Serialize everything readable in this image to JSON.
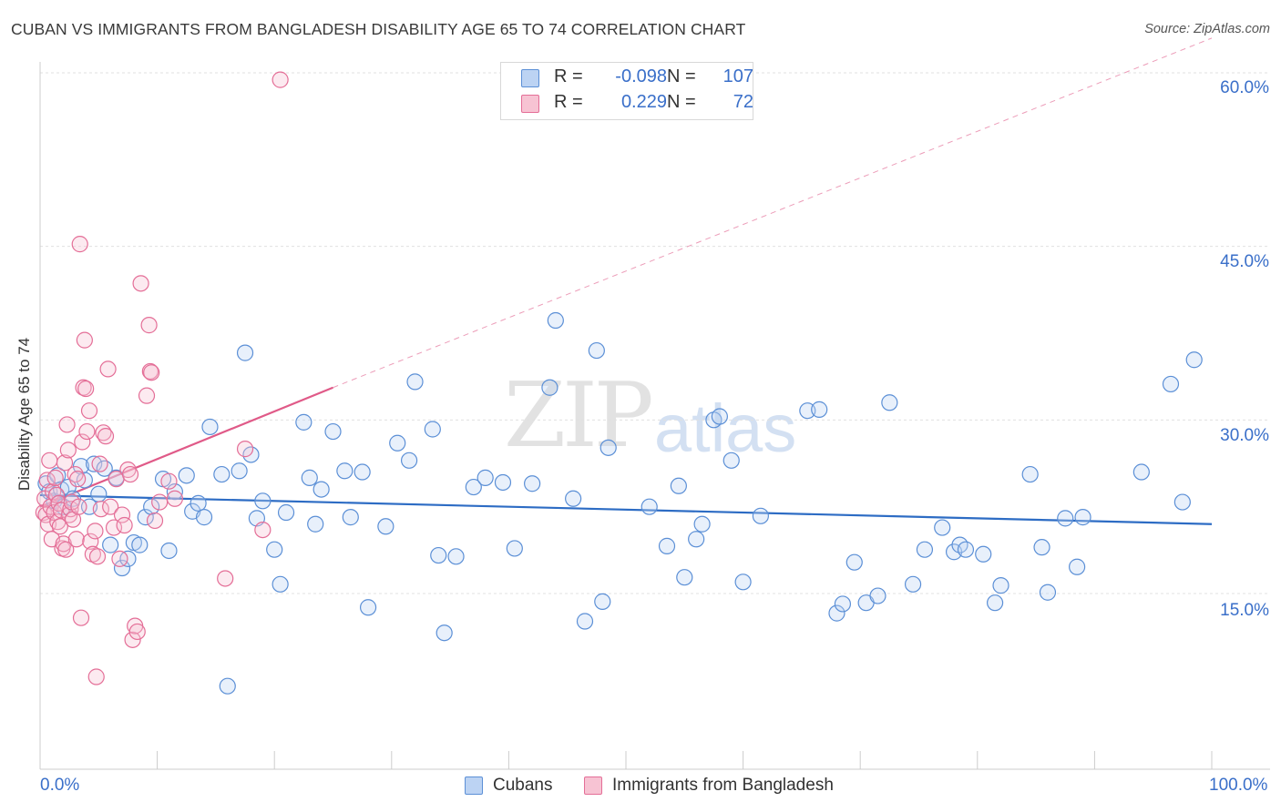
{
  "title": "CUBAN VS IMMIGRANTS FROM BANGLADESH DISABILITY AGE 65 TO 74 CORRELATION CHART",
  "source": "Source: ZipAtlas.com",
  "watermark": {
    "zip": "ZIP",
    "atlas": "atlas"
  },
  "legend_top": {
    "rows": [
      {
        "r_label": "R =",
        "r_value": "-0.098",
        "n_label": "N =",
        "n_value": "107"
      },
      {
        "r_label": "R =",
        "r_value": "0.229",
        "n_label": "N =",
        "n_value": "72"
      }
    ]
  },
  "colors": {
    "blue": "#5b8fd6",
    "blue_fill": "#bcd3f3",
    "pink": "#e46e97",
    "pink_fill": "#f7c3d3",
    "blue_line": "#2d6cc4",
    "pink_line": "#e05a88",
    "label_blue": "#3a6fc9",
    "grid": "#e0e0e0"
  },
  "chart_data": {
    "type": "scatter",
    "title": "CUBAN VS IMMIGRANTS FROM BANGLADESH DISABILITY AGE 65 TO 74 CORRELATION CHART",
    "xlabel": "",
    "ylabel": "Disability Age 65 to 74",
    "xlim": [
      0,
      100
    ],
    "ylim": [
      0,
      63
    ],
    "x_tick_labels": [
      "0.0%",
      "100.0%"
    ],
    "y_ticks": [
      15,
      30,
      45,
      60
    ],
    "y_tick_labels": [
      "15.0%",
      "30.0%",
      "45.0%",
      "60.0%"
    ],
    "grid": true,
    "legend_placement": "top-center",
    "series": [
      {
        "name": "Cubans",
        "color": "#5b8fd6",
        "r": -0.098,
        "n": 107,
        "trend": {
          "x": [
            0,
            100
          ],
          "y": [
            23.5,
            21.0
          ],
          "dashed_extension": false
        },
        "points": [
          [
            0.5,
            24.5
          ],
          [
            0.8,
            23.8
          ],
          [
            1.2,
            23.0
          ],
          [
            1.5,
            25.2
          ],
          [
            1.8,
            24.0
          ],
          [
            2.0,
            22.5
          ],
          [
            2.4,
            24.2
          ],
          [
            2.8,
            23.2
          ],
          [
            3.5,
            26.0
          ],
          [
            3.8,
            24.8
          ],
          [
            4.2,
            22.5
          ],
          [
            4.6,
            26.2
          ],
          [
            5.0,
            23.6
          ],
          [
            5.5,
            25.8
          ],
          [
            6.0,
            19.2
          ],
          [
            6.5,
            25.0
          ],
          [
            7.0,
            17.2
          ],
          [
            7.5,
            18.0
          ],
          [
            8.0,
            19.4
          ],
          [
            8.5,
            19.2
          ],
          [
            9.0,
            21.6
          ],
          [
            9.5,
            22.5
          ],
          [
            10.5,
            24.9
          ],
          [
            11.0,
            18.7
          ],
          [
            11.5,
            23.8
          ],
          [
            12.5,
            25.2
          ],
          [
            13.0,
            22.1
          ],
          [
            13.5,
            22.8
          ],
          [
            14.0,
            21.6
          ],
          [
            14.5,
            29.4
          ],
          [
            15.5,
            25.3
          ],
          [
            16.0,
            7.0
          ],
          [
            17.0,
            25.6
          ],
          [
            17.5,
            35.8
          ],
          [
            18.0,
            27.0
          ],
          [
            18.5,
            21.5
          ],
          [
            19.0,
            23.0
          ],
          [
            20.0,
            18.8
          ],
          [
            20.5,
            15.8
          ],
          [
            21.0,
            22.0
          ],
          [
            22.5,
            29.8
          ],
          [
            23.0,
            25.0
          ],
          [
            23.5,
            21.0
          ],
          [
            24.0,
            24.0
          ],
          [
            25.0,
            29.0
          ],
          [
            26.0,
            25.6
          ],
          [
            26.5,
            21.6
          ],
          [
            27.5,
            25.5
          ],
          [
            28.0,
            13.8
          ],
          [
            29.5,
            20.8
          ],
          [
            30.5,
            28.0
          ],
          [
            31.5,
            26.5
          ],
          [
            32.0,
            33.3
          ],
          [
            33.5,
            29.2
          ],
          [
            34.0,
            18.3
          ],
          [
            34.5,
            11.6
          ],
          [
            35.5,
            18.2
          ],
          [
            37.0,
            24.2
          ],
          [
            38.0,
            25.0
          ],
          [
            39.5,
            24.6
          ],
          [
            40.5,
            18.9
          ],
          [
            42.0,
            24.5
          ],
          [
            43.5,
            32.8
          ],
          [
            44.0,
            38.6
          ],
          [
            45.5,
            23.2
          ],
          [
            46.5,
            12.6
          ],
          [
            47.5,
            36.0
          ],
          [
            48.0,
            14.3
          ],
          [
            48.5,
            27.6
          ],
          [
            52.0,
            22.5
          ],
          [
            53.5,
            19.1
          ],
          [
            54.5,
            24.3
          ],
          [
            55.0,
            16.4
          ],
          [
            56.0,
            19.7
          ],
          [
            56.5,
            21.0
          ],
          [
            57.5,
            30.0
          ],
          [
            58.0,
            30.3
          ],
          [
            59.0,
            26.5
          ],
          [
            60.0,
            16.0
          ],
          [
            61.5,
            21.7
          ],
          [
            65.5,
            30.8
          ],
          [
            66.5,
            30.9
          ],
          [
            68.0,
            13.3
          ],
          [
            68.5,
            14.1
          ],
          [
            69.5,
            17.7
          ],
          [
            70.5,
            14.2
          ],
          [
            71.5,
            14.8
          ],
          [
            72.5,
            31.5
          ],
          [
            74.5,
            15.8
          ],
          [
            75.5,
            18.8
          ],
          [
            77.0,
            20.7
          ],
          [
            78.0,
            18.6
          ],
          [
            78.5,
            19.2
          ],
          [
            79.0,
            18.8
          ],
          [
            80.5,
            18.4
          ],
          [
            81.5,
            14.2
          ],
          [
            82.0,
            15.7
          ],
          [
            84.5,
            25.3
          ],
          [
            85.5,
            19.0
          ],
          [
            86.0,
            15.1
          ],
          [
            87.5,
            21.5
          ],
          [
            88.5,
            17.3
          ],
          [
            89.0,
            21.6
          ],
          [
            94.0,
            25.5
          ],
          [
            96.5,
            33.1
          ],
          [
            97.5,
            22.9
          ],
          [
            98.5,
            35.2
          ]
        ]
      },
      {
        "name": "Immigrants from Bangladesh",
        "color": "#e46e97",
        "r": 0.229,
        "n": 72,
        "trend": {
          "x": [
            0,
            25
          ],
          "y": [
            22.5,
            32.8
          ],
          "dashed_extension_to": [
            100,
            63
          ]
        },
        "points": [
          [
            0.3,
            22.0
          ],
          [
            0.4,
            23.2
          ],
          [
            0.5,
            21.8
          ],
          [
            0.6,
            24.8
          ],
          [
            0.7,
            21.0
          ],
          [
            0.8,
            26.5
          ],
          [
            0.9,
            22.5
          ],
          [
            1.0,
            19.7
          ],
          [
            1.1,
            23.8
          ],
          [
            1.2,
            22.0
          ],
          [
            1.3,
            25.0
          ],
          [
            1.4,
            23.5
          ],
          [
            1.5,
            21.2
          ],
          [
            1.6,
            22.8
          ],
          [
            1.7,
            20.8
          ],
          [
            1.8,
            22.2
          ],
          [
            1.9,
            18.9
          ],
          [
            2.0,
            19.3
          ],
          [
            2.1,
            26.3
          ],
          [
            2.2,
            18.8
          ],
          [
            2.3,
            29.6
          ],
          [
            2.4,
            27.4
          ],
          [
            2.5,
            21.8
          ],
          [
            2.6,
            22.3
          ],
          [
            2.7,
            22.9
          ],
          [
            2.8,
            21.4
          ],
          [
            3.0,
            25.3
          ],
          [
            3.1,
            19.7
          ],
          [
            3.2,
            24.9
          ],
          [
            3.3,
            22.5
          ],
          [
            3.4,
            45.2
          ],
          [
            3.5,
            12.9
          ],
          [
            3.6,
            28.1
          ],
          [
            3.7,
            32.8
          ],
          [
            3.8,
            36.9
          ],
          [
            3.9,
            32.7
          ],
          [
            4.0,
            29.0
          ],
          [
            4.2,
            30.8
          ],
          [
            4.3,
            19.5
          ],
          [
            4.5,
            18.4
          ],
          [
            4.7,
            20.4
          ],
          [
            4.8,
            7.8
          ],
          [
            4.9,
            18.2
          ],
          [
            5.1,
            26.2
          ],
          [
            5.2,
            22.3
          ],
          [
            5.4,
            28.9
          ],
          [
            5.6,
            28.6
          ],
          [
            5.8,
            34.4
          ],
          [
            6.0,
            22.5
          ],
          [
            6.3,
            20.7
          ],
          [
            6.5,
            24.9
          ],
          [
            6.8,
            18.0
          ],
          [
            7.0,
            21.8
          ],
          [
            7.2,
            20.9
          ],
          [
            7.5,
            25.7
          ],
          [
            7.7,
            25.3
          ],
          [
            7.9,
            11.0
          ],
          [
            8.1,
            12.2
          ],
          [
            8.3,
            11.7
          ],
          [
            8.6,
            41.8
          ],
          [
            9.1,
            32.1
          ],
          [
            9.3,
            38.2
          ],
          [
            9.4,
            34.2
          ],
          [
            9.5,
            34.1
          ],
          [
            9.8,
            21.3
          ],
          [
            10.2,
            22.9
          ],
          [
            11.0,
            24.7
          ],
          [
            11.5,
            23.2
          ],
          [
            15.8,
            16.3
          ],
          [
            17.5,
            27.5
          ],
          [
            19.0,
            20.5
          ],
          [
            20.5,
            59.4
          ]
        ]
      }
    ]
  },
  "x_axis": {
    "left_label": "0.0%",
    "right_label": "100.0%"
  },
  "y_axis_title": "Disability Age 65 to 74",
  "bottom_legend": {
    "cubans": "Cubans",
    "bangladesh": "Immigrants from Bangladesh"
  }
}
